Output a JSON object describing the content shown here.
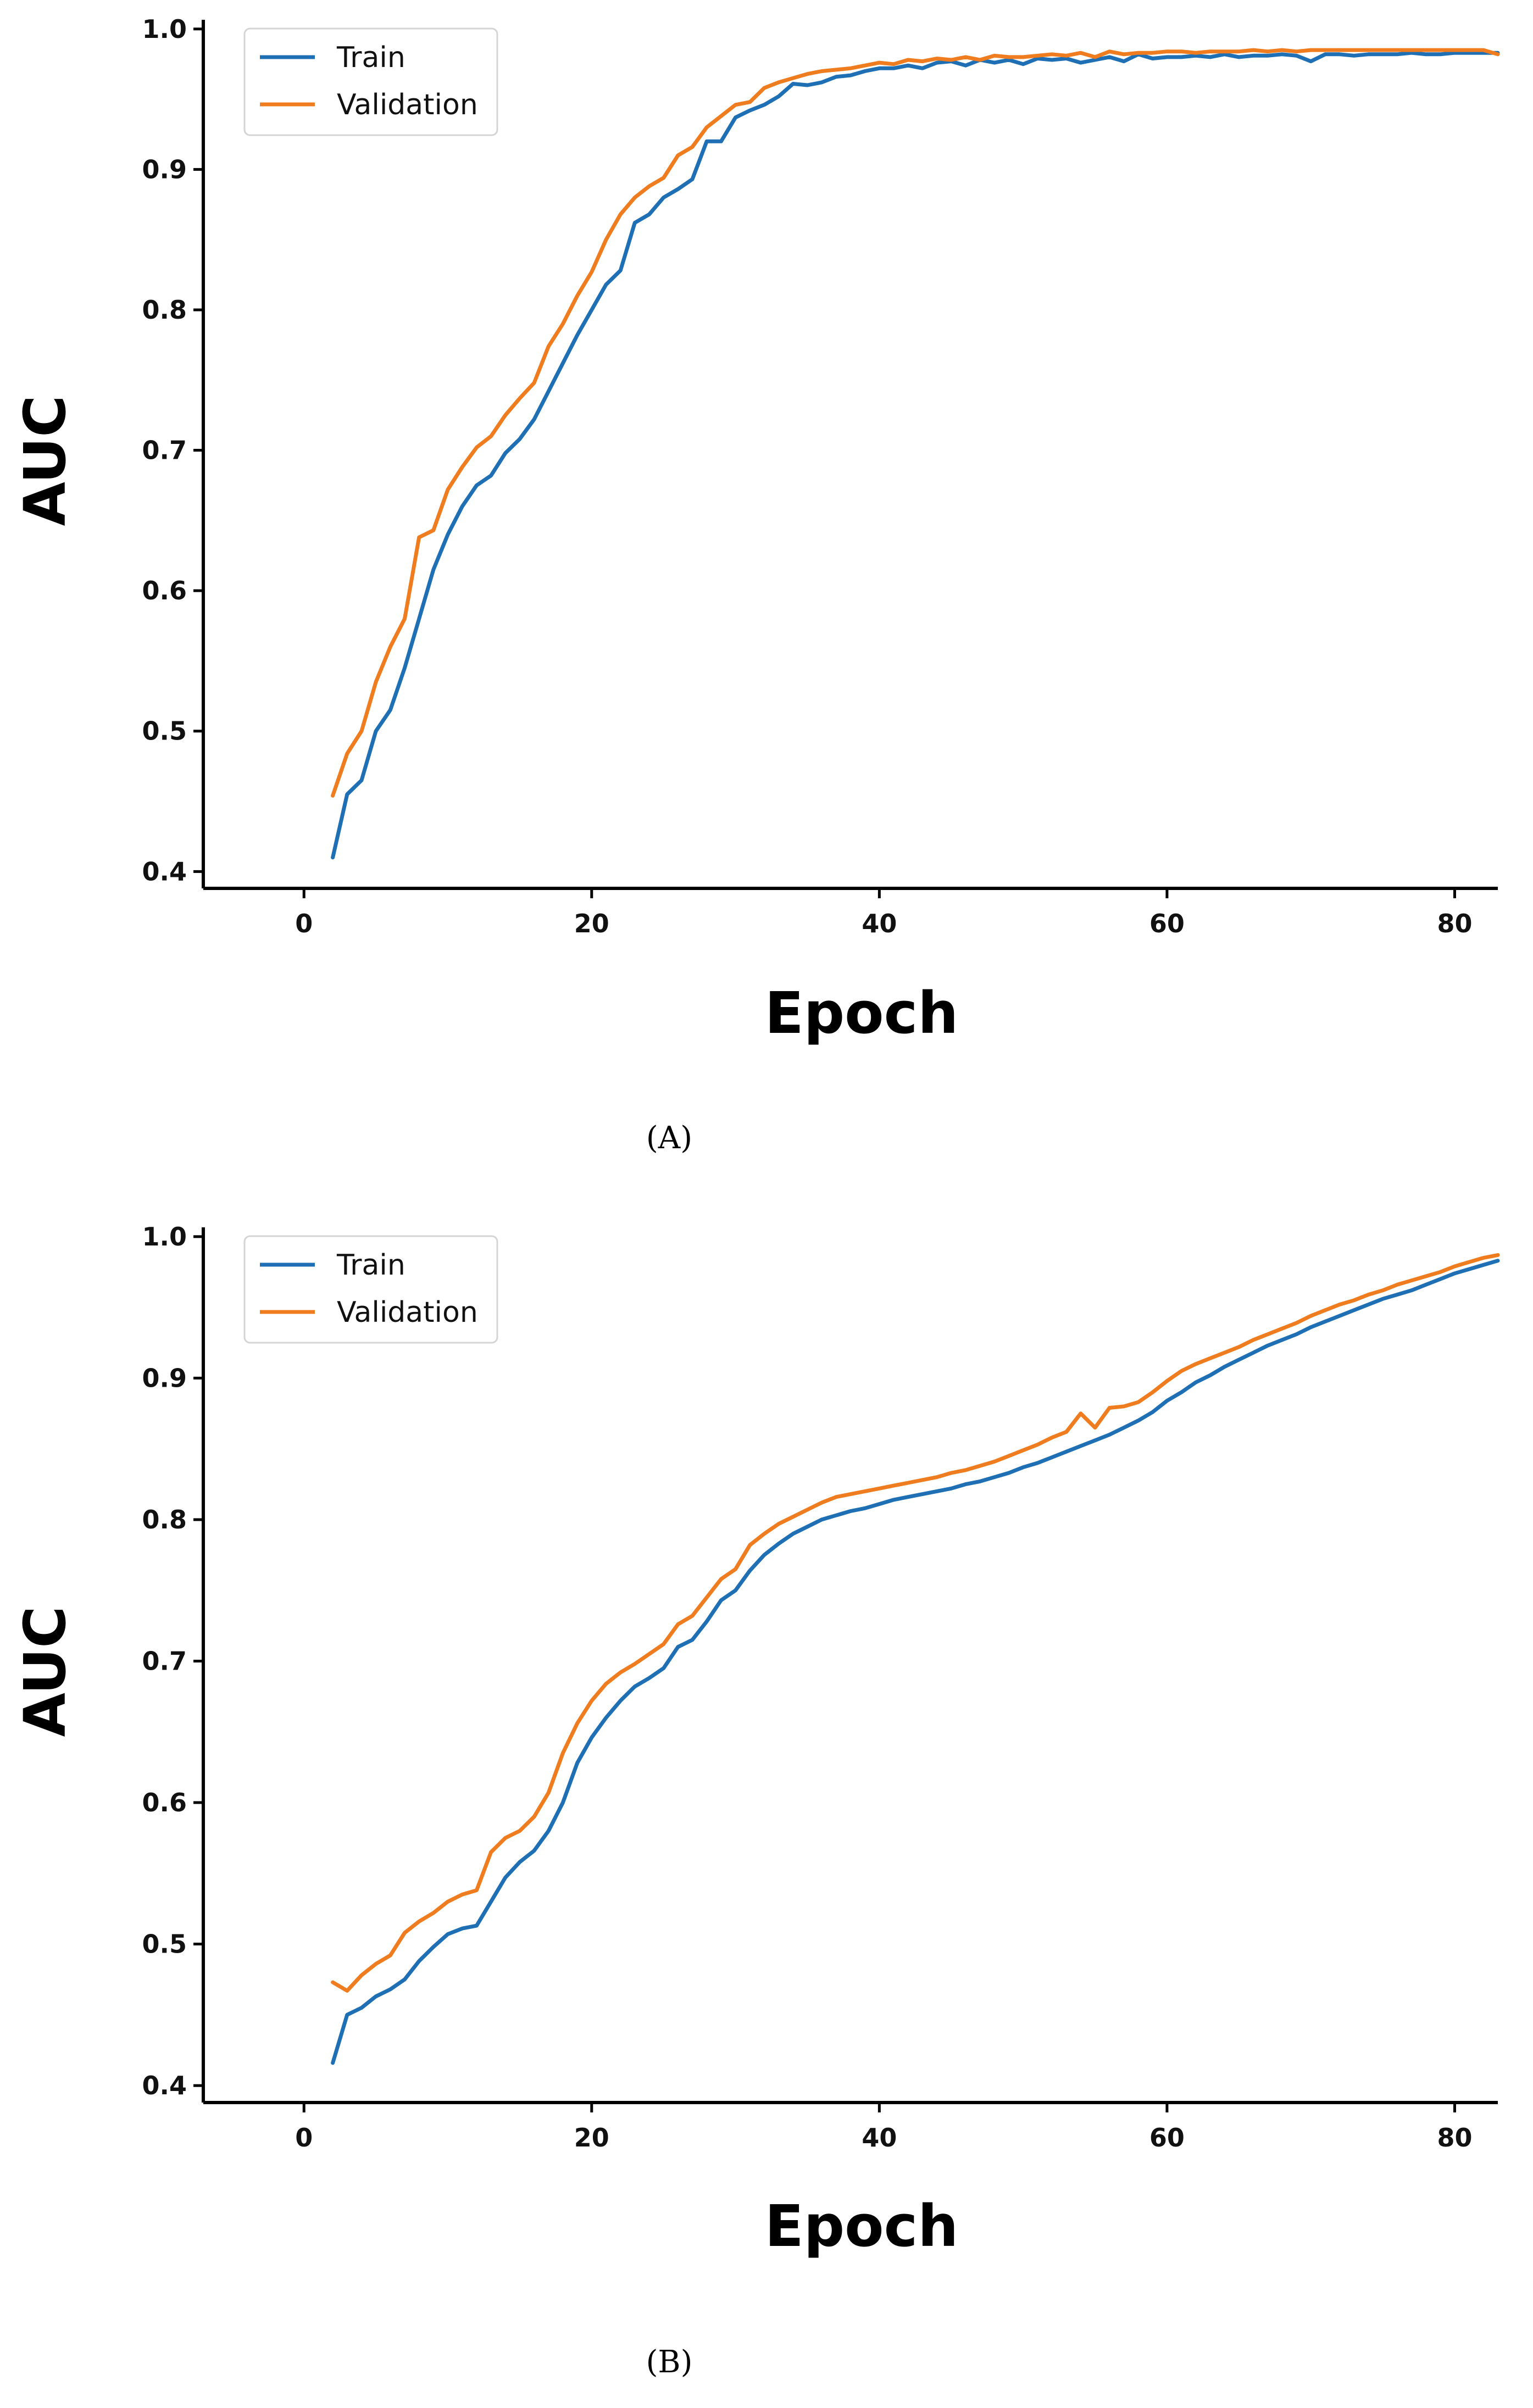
{
  "colors": {
    "train": "#1f6fb4",
    "validation": "#ef7d1f",
    "axis": "#000000",
    "background": "#ffffff"
  },
  "chart_data": [
    {
      "type": "line",
      "panel_label": "(A)",
      "xlabel": "Epoch",
      "ylabel": "AUC",
      "xlim": [
        -7,
        83
      ],
      "ylim": [
        0.388,
        1.005
      ],
      "xticks": [
        0,
        20,
        40,
        60,
        80
      ],
      "yticks": [
        0.4,
        0.5,
        0.6,
        0.7,
        0.8,
        0.9,
        1.0
      ],
      "xtick_labels": [
        "0",
        "20",
        "40",
        "60",
        "80"
      ],
      "ytick_labels": [
        "0.4",
        "0.5",
        "0.6",
        "0.7",
        "0.8",
        "0.9",
        "1.0"
      ],
      "legend": {
        "position": "top-left",
        "entries": [
          "Train",
          "Validation"
        ]
      },
      "series": [
        {
          "name": "Train",
          "x": [
            2,
            3,
            4,
            5,
            6,
            7,
            8,
            9,
            10,
            11,
            12,
            13,
            14,
            15,
            16,
            17,
            18,
            19,
            20,
            21,
            22,
            23,
            24,
            25,
            26,
            27,
            28,
            29,
            30,
            31,
            32,
            33,
            34,
            35,
            36,
            37,
            38,
            39,
            40,
            41,
            42,
            43,
            44,
            45,
            46,
            47,
            48,
            49,
            50,
            51,
            52,
            53,
            54,
            55,
            56,
            57,
            58,
            59,
            60,
            61,
            62,
            63,
            64,
            65,
            66,
            67,
            68,
            69,
            70,
            71,
            72,
            73,
            74,
            75,
            76,
            77,
            78,
            79,
            80,
            81,
            82,
            83
          ],
          "values": [
            0.41,
            0.455,
            0.465,
            0.5,
            0.515,
            0.545,
            0.58,
            0.615,
            0.64,
            0.66,
            0.675,
            0.682,
            0.698,
            0.708,
            0.722,
            0.742,
            0.762,
            0.782,
            0.8,
            0.818,
            0.828,
            0.862,
            0.868,
            0.88,
            0.886,
            0.893,
            0.92,
            0.92,
            0.937,
            0.942,
            0.946,
            0.952,
            0.961,
            0.96,
            0.962,
            0.966,
            0.967,
            0.97,
            0.972,
            0.972,
            0.974,
            0.972,
            0.976,
            0.977,
            0.974,
            0.978,
            0.976,
            0.978,
            0.975,
            0.979,
            0.978,
            0.979,
            0.976,
            0.978,
            0.98,
            0.977,
            0.982,
            0.979,
            0.98,
            0.98,
            0.981,
            0.98,
            0.982,
            0.98,
            0.981,
            0.981,
            0.982,
            0.981,
            0.977,
            0.982,
            0.982,
            0.981,
            0.982,
            0.982,
            0.982,
            0.983,
            0.982,
            0.982,
            0.983,
            0.983,
            0.983,
            0.983
          ]
        },
        {
          "name": "Validation",
          "x": [
            2,
            3,
            4,
            5,
            6,
            7,
            8,
            9,
            10,
            11,
            12,
            13,
            14,
            15,
            16,
            17,
            18,
            19,
            20,
            21,
            22,
            23,
            24,
            25,
            26,
            27,
            28,
            29,
            30,
            31,
            32,
            33,
            34,
            35,
            36,
            37,
            38,
            39,
            40,
            41,
            42,
            43,
            44,
            45,
            46,
            47,
            48,
            49,
            50,
            51,
            52,
            53,
            54,
            55,
            56,
            57,
            58,
            59,
            60,
            61,
            62,
            63,
            64,
            65,
            66,
            67,
            68,
            69,
            70,
            71,
            72,
            73,
            74,
            75,
            76,
            77,
            78,
            79,
            80,
            81,
            82,
            83
          ],
          "values": [
            0.454,
            0.484,
            0.5,
            0.535,
            0.56,
            0.58,
            0.638,
            0.643,
            0.672,
            0.688,
            0.702,
            0.71,
            0.725,
            0.737,
            0.748,
            0.774,
            0.79,
            0.81,
            0.827,
            0.85,
            0.868,
            0.88,
            0.888,
            0.894,
            0.91,
            0.916,
            0.93,
            0.938,
            0.946,
            0.948,
            0.958,
            0.962,
            0.965,
            0.968,
            0.97,
            0.971,
            0.972,
            0.974,
            0.976,
            0.975,
            0.978,
            0.977,
            0.979,
            0.978,
            0.98,
            0.978,
            0.981,
            0.98,
            0.98,
            0.981,
            0.982,
            0.981,
            0.983,
            0.98,
            0.984,
            0.982,
            0.983,
            0.983,
            0.984,
            0.984,
            0.983,
            0.984,
            0.984,
            0.984,
            0.985,
            0.984,
            0.985,
            0.984,
            0.985,
            0.985,
            0.985,
            0.985,
            0.985,
            0.985,
            0.985,
            0.985,
            0.985,
            0.985,
            0.985,
            0.985,
            0.985,
            0.982
          ]
        }
      ]
    },
    {
      "type": "line",
      "panel_label": "(B)",
      "xlabel": "Epoch",
      "ylabel": "AUC",
      "xlim": [
        -7,
        83
      ],
      "ylim": [
        0.388,
        1.005
      ],
      "xticks": [
        0,
        20,
        40,
        60,
        80
      ],
      "yticks": [
        0.4,
        0.5,
        0.6,
        0.7,
        0.8,
        0.9,
        1.0
      ],
      "xtick_labels": [
        "0",
        "20",
        "40",
        "60",
        "80"
      ],
      "ytick_labels": [
        "0.4",
        "0.5",
        "0.6",
        "0.7",
        "0.8",
        "0.9",
        "1.0"
      ],
      "legend": {
        "position": "top-left",
        "entries": [
          "Train",
          "Validation"
        ]
      },
      "series": [
        {
          "name": "Train",
          "x": [
            2,
            3,
            4,
            5,
            6,
            7,
            8,
            9,
            10,
            11,
            12,
            13,
            14,
            15,
            16,
            17,
            18,
            19,
            20,
            21,
            22,
            23,
            24,
            25,
            26,
            27,
            28,
            29,
            30,
            31,
            32,
            33,
            34,
            35,
            36,
            37,
            38,
            39,
            40,
            41,
            42,
            43,
            44,
            45,
            46,
            47,
            48,
            49,
            50,
            51,
            52,
            53,
            54,
            55,
            56,
            57,
            58,
            59,
            60,
            61,
            62,
            63,
            64,
            65,
            66,
            67,
            68,
            69,
            70,
            71,
            72,
            73,
            74,
            75,
            76,
            77,
            78,
            79,
            80,
            81,
            82,
            83
          ],
          "values": [
            0.416,
            0.45,
            0.455,
            0.463,
            0.468,
            0.475,
            0.488,
            0.498,
            0.507,
            0.511,
            0.513,
            0.53,
            0.547,
            0.558,
            0.566,
            0.58,
            0.6,
            0.628,
            0.646,
            0.66,
            0.672,
            0.682,
            0.688,
            0.695,
            0.71,
            0.715,
            0.728,
            0.743,
            0.75,
            0.764,
            0.775,
            0.783,
            0.79,
            0.795,
            0.8,
            0.803,
            0.806,
            0.808,
            0.811,
            0.814,
            0.816,
            0.818,
            0.82,
            0.822,
            0.825,
            0.827,
            0.83,
            0.833,
            0.837,
            0.84,
            0.844,
            0.848,
            0.852,
            0.856,
            0.86,
            0.865,
            0.87,
            0.876,
            0.884,
            0.89,
            0.897,
            0.902,
            0.908,
            0.913,
            0.918,
            0.923,
            0.927,
            0.931,
            0.936,
            0.94,
            0.944,
            0.948,
            0.952,
            0.956,
            0.959,
            0.962,
            0.966,
            0.97,
            0.974,
            0.977,
            0.98,
            0.983
          ]
        },
        {
          "name": "Validation",
          "x": [
            2,
            3,
            4,
            5,
            6,
            7,
            8,
            9,
            10,
            11,
            12,
            13,
            14,
            15,
            16,
            17,
            18,
            19,
            20,
            21,
            22,
            23,
            24,
            25,
            26,
            27,
            28,
            29,
            30,
            31,
            32,
            33,
            34,
            35,
            36,
            37,
            38,
            39,
            40,
            41,
            42,
            43,
            44,
            45,
            46,
            47,
            48,
            49,
            50,
            51,
            52,
            53,
            54,
            55,
            56,
            57,
            58,
            59,
            60,
            61,
            62,
            63,
            64,
            65,
            66,
            67,
            68,
            69,
            70,
            71,
            72,
            73,
            74,
            75,
            76,
            77,
            78,
            79,
            80,
            81,
            82,
            83
          ],
          "values": [
            0.473,
            0.467,
            0.478,
            0.486,
            0.492,
            0.508,
            0.516,
            0.522,
            0.53,
            0.535,
            0.538,
            0.565,
            0.575,
            0.58,
            0.59,
            0.607,
            0.635,
            0.656,
            0.672,
            0.684,
            0.692,
            0.698,
            0.705,
            0.712,
            0.726,
            0.732,
            0.745,
            0.758,
            0.765,
            0.782,
            0.79,
            0.797,
            0.802,
            0.807,
            0.812,
            0.816,
            0.818,
            0.82,
            0.822,
            0.824,
            0.826,
            0.828,
            0.83,
            0.833,
            0.835,
            0.838,
            0.841,
            0.845,
            0.849,
            0.853,
            0.858,
            0.862,
            0.875,
            0.865,
            0.879,
            0.88,
            0.883,
            0.89,
            0.898,
            0.905,
            0.91,
            0.914,
            0.918,
            0.922,
            0.927,
            0.931,
            0.935,
            0.939,
            0.944,
            0.948,
            0.952,
            0.955,
            0.959,
            0.962,
            0.966,
            0.969,
            0.972,
            0.975,
            0.979,
            0.982,
            0.985,
            0.987
          ]
        }
      ]
    }
  ]
}
